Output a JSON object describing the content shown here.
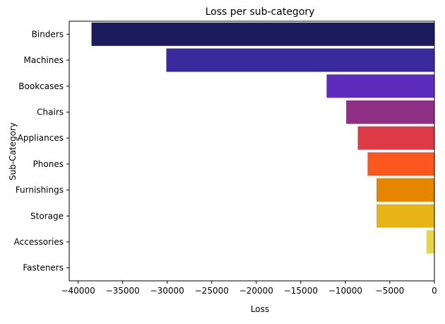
{
  "chart_data": {
    "type": "bar",
    "orientation": "horizontal",
    "title": "Loss per sub-category",
    "xlabel": "Loss",
    "ylabel": "Sub-Category",
    "xlim": [
      -41000,
      0
    ],
    "xticks": [
      -40000,
      -35000,
      -30000,
      -25000,
      -20000,
      -15000,
      -10000,
      -5000,
      0
    ],
    "grid": false,
    "categories": [
      "Binders",
      "Machines",
      "Bookcases",
      "Chairs",
      "Appliances",
      "Phones",
      "Furnishings",
      "Storage",
      "Accessories",
      "Fasteners"
    ],
    "values": [
      -38500,
      -30100,
      -12100,
      -9900,
      -8600,
      -7500,
      -6500,
      -6500,
      -900,
      0
    ],
    "colors": [
      "#1b1b5e",
      "#3a2a9e",
      "#5e2bbf",
      "#8f2f86",
      "#dd3a48",
      "#fc561f",
      "#e58500",
      "#e7b416",
      "#e6d44a",
      "#f2e36a"
    ]
  }
}
